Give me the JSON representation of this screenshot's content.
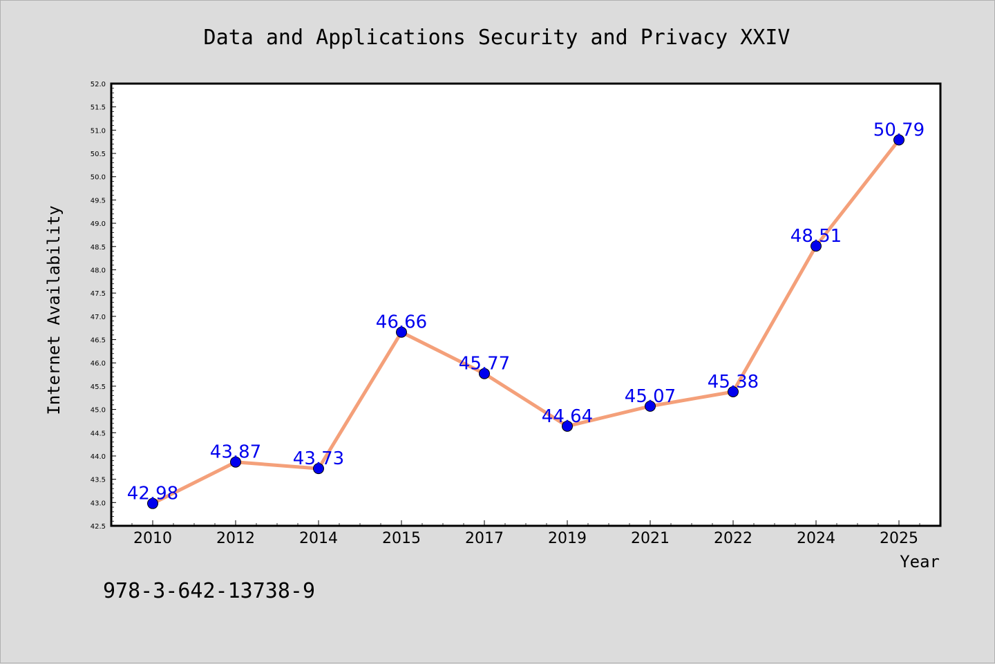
{
  "chart_data": {
    "type": "line",
    "title": "Data and Applications Security and Privacy XXIV",
    "xlabel": "Year",
    "ylabel": "Internet Availability",
    "categories": [
      "2010",
      "2012",
      "2014",
      "2015",
      "2017",
      "2019",
      "2021",
      "2022",
      "2024",
      "2025"
    ],
    "series": [
      {
        "values": [
          42.98,
          43.87,
          43.73,
          46.66,
          45.77,
          44.64,
          45.07,
          45.38,
          48.51,
          50.79
        ]
      }
    ],
    "ylim": [
      42.5,
      52.0
    ],
    "yticks": [
      "42.5",
      "43.0",
      "43.5",
      "44.0",
      "44.5",
      "45.0",
      "45.5",
      "46.0",
      "46.5",
      "47.0",
      "47.5",
      "48.0",
      "48.5",
      "49.0",
      "49.5",
      "50.0",
      "50.5",
      "51.0",
      "51.5",
      "52.0"
    ],
    "data_labels": [
      "42.98",
      "43.87",
      "43.73",
      "46.66",
      "45.77",
      "44.64",
      "45.07",
      "45.38",
      "48.51",
      "50.79"
    ],
    "grid": false,
    "colors": {
      "line": "#f4a07a",
      "marker": "#0000ee",
      "data_label": "#0000ee",
      "background": "#dcdcdc",
      "plot_background": "#ffffff"
    }
  },
  "footnote": "978-3-642-13738-9"
}
